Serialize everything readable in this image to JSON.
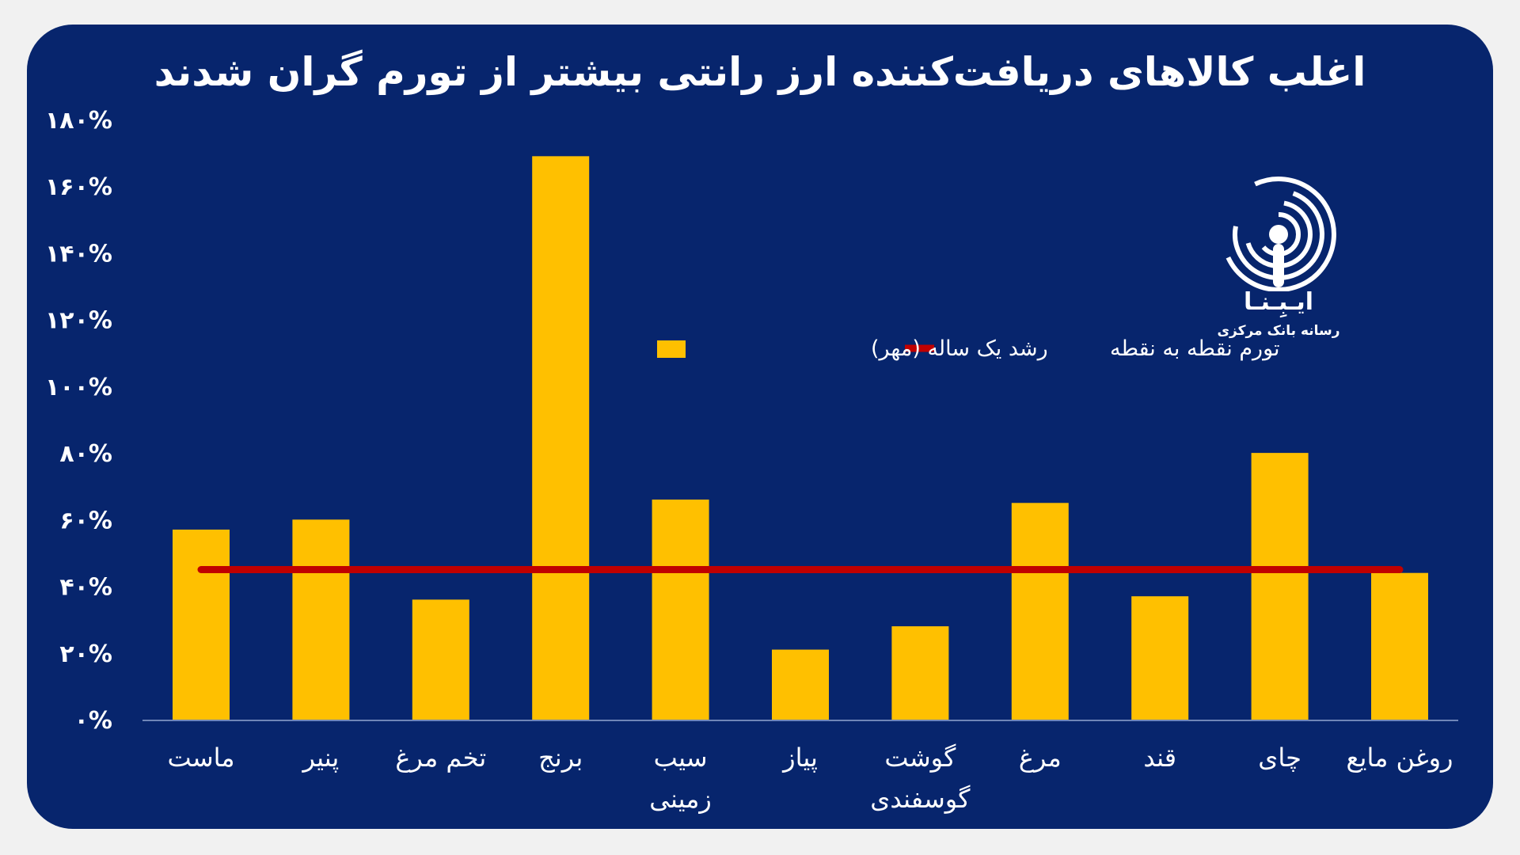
{
  "chart_data": {
    "type": "bar",
    "title": "اغلب کالاهای دریافت‌کننده ارز رانتی بیشتر از تورم گران شدند",
    "categories": [
      "ماست",
      "پنیر",
      "تخم مرغ",
      "برنج",
      "سیب زمینی",
      "پیاز",
      "گوشت گوسفندی",
      "مرغ",
      "قند",
      "چای",
      "روغن مایع"
    ],
    "category_lines": [
      [
        "ماست"
      ],
      [
        "پنیر"
      ],
      [
        "تخم مرغ"
      ],
      [
        "برنج"
      ],
      [
        "سیب",
        "زمینی"
      ],
      [
        "پیاز"
      ],
      [
        "گوشت",
        "گوسفندی"
      ],
      [
        "مرغ"
      ],
      [
        "قند"
      ],
      [
        "چای"
      ],
      [
        "روغن مایع"
      ]
    ],
    "series": [
      {
        "name": "رشد یک ساله (مهر)",
        "type": "bar",
        "color": "#ffc000",
        "values": [
          57,
          60,
          36,
          169,
          66,
          21,
          28,
          65,
          37,
          80,
          44
        ]
      },
      {
        "name": "تورم نقطه به نقطه",
        "type": "line",
        "color": "#c00000",
        "values": [
          45,
          45,
          45,
          45,
          45,
          45,
          45,
          45,
          45,
          45,
          45
        ]
      }
    ],
    "yticks": [
      0,
      20,
      40,
      60,
      80,
      100,
      120,
      140,
      160,
      180
    ],
    "ytick_labels": [
      "۰%",
      "۲۰%",
      "۴۰%",
      "۶۰%",
      "۸۰%",
      "۱۰۰%",
      "۱۲۰%",
      "۱۴۰%",
      "۱۶۰%",
      "۱۸۰%"
    ],
    "ylim": [
      0,
      180
    ],
    "xlabel": "",
    "ylabel": "",
    "grid": false,
    "legend_position": "center-right"
  },
  "logo": {
    "name": "ایـبِـنـا",
    "subtitle": "رسانه بانک مرکزی",
    "icon": "broadcast-mic-icon"
  },
  "colors": {
    "background": "#07256d",
    "text": "#ffffff",
    "bar": "#ffc000",
    "line": "#c00000"
  }
}
